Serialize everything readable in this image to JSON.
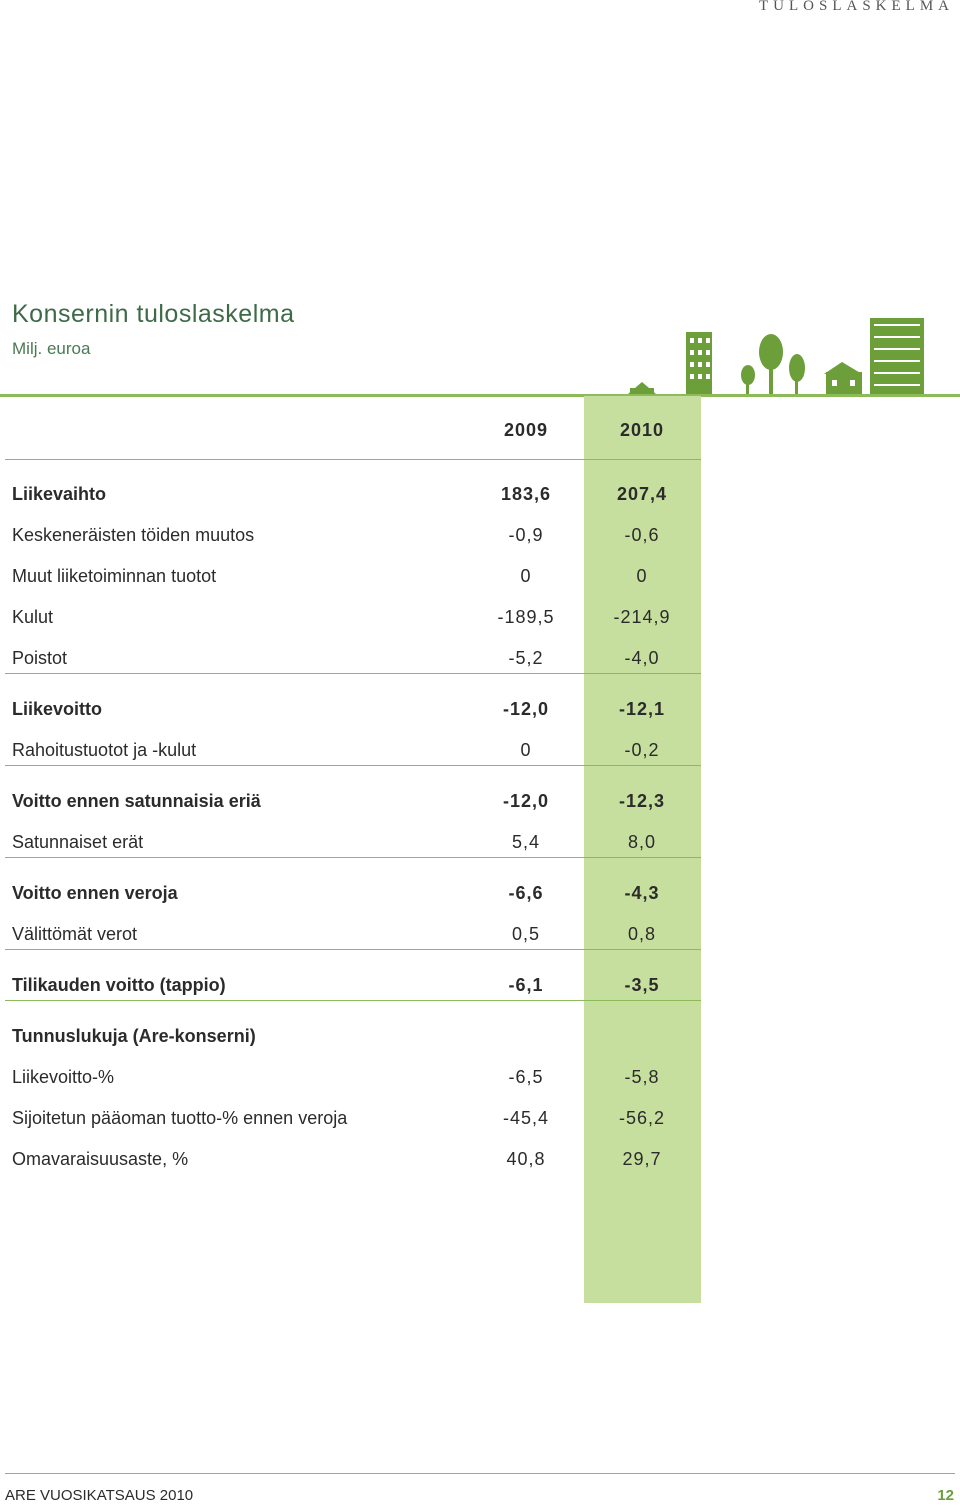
{
  "header": {
    "running_title": "TULOSLASKELMA",
    "title": "Konsernin tuloslaskelma",
    "subtitle": "Milj. euroa"
  },
  "table": {
    "columns": [
      "2009",
      "2010"
    ],
    "sections": [
      {
        "rows": [
          {
            "label": "Liikevaihto",
            "values": [
              "183,6",
              "207,4"
            ]
          },
          {
            "label": "Keskeneräisten töiden muutos",
            "values": [
              "-0,9",
              "-0,6"
            ]
          },
          {
            "label": "Muut liiketoiminnan tuotot",
            "values": [
              "0",
              "0"
            ]
          },
          {
            "label": "Kulut",
            "values": [
              "-189,5",
              "-214,9"
            ]
          },
          {
            "label": "Poistot",
            "values": [
              "-5,2",
              "-4,0"
            ]
          }
        ]
      },
      {
        "rows": [
          {
            "label": "Liikevoitto",
            "values": [
              "-12,0",
              "-12,1"
            ]
          },
          {
            "label": "Rahoitustuotot ja -kulut",
            "values": [
              "0",
              "-0,2"
            ]
          }
        ]
      },
      {
        "rows": [
          {
            "label": "Voitto ennen satunnaisia eriä",
            "values": [
              "-12,0",
              "-12,3"
            ]
          },
          {
            "label": "Satunnaiset erät",
            "values": [
              "5,4",
              "8,0"
            ]
          }
        ]
      },
      {
        "rows": [
          {
            "label": "Voitto ennen veroja",
            "values": [
              "-6,6",
              "-4,3"
            ]
          },
          {
            "label": "Välittömät verot",
            "values": [
              "0,5",
              "0,8"
            ]
          }
        ]
      },
      {
        "rows": [
          {
            "label": "Tilikauden voitto (tappio)",
            "values": [
              "-6,1",
              "-3,5"
            ]
          }
        ]
      },
      {
        "rows": [
          {
            "label": "Tunnuslukuja (Are-konserni)"
          },
          {
            "label": "Liikevoitto-%",
            "values": [
              "-6,5",
              "-5,8"
            ]
          },
          {
            "label": "Sijoitetun pääoman tuotto-% ennen veroja",
            "values": [
              "-45,4",
              "-56,2"
            ]
          },
          {
            "label": "Omavaraisuusaste, %",
            "values": [
              "40,8",
              "29,7"
            ]
          }
        ]
      }
    ]
  },
  "footer": {
    "publication": "ARE VUOSIKATSAUS 2010",
    "page": "12"
  }
}
